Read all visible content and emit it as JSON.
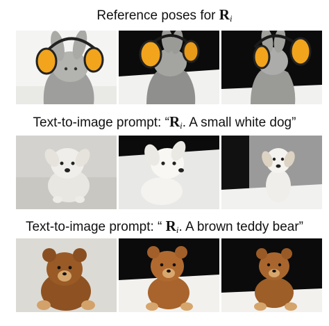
{
  "sections": [
    {
      "caption_prefix": "Reference poses for ",
      "caption_symbol": "R",
      "caption_sub": "i",
      "caption_suffix": ""
    },
    {
      "caption_prefix": "Text-to-image prompt: “",
      "caption_symbol": "R",
      "caption_sub": "i",
      "caption_suffix": ". A small white dog”"
    },
    {
      "caption_prefix": "Text-to-image prompt: “ ",
      "caption_symbol": "R",
      "caption_sub": "i",
      "caption_suffix": ". A brown teddy bear”"
    }
  ],
  "colors": {
    "earmuff_yellow": "#f2a41c",
    "bunny_gray": "#a6a6a6",
    "dog_white": "#eeeeea",
    "bear_brown": "#9a5a26",
    "dark_backdrop": "#0b0b0b"
  }
}
